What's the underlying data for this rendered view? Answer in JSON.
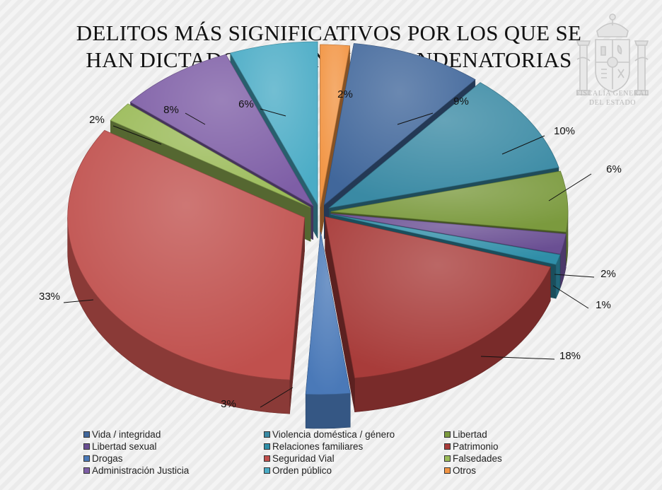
{
  "header": {
    "title_line1": "DELITOS MÁS SIGNIFICATIVOS POR LOS QUE SE",
    "title_line2": "HAN DICTADO SENTENCIAS CONDENATORIAS"
  },
  "emblem": {
    "icon": "coat-of-arms-icon",
    "line1": "FISCALÍA GENERAL",
    "line2": "DEL ESTADO"
  },
  "chart_data": {
    "type": "pie",
    "title": "DELITOS MÁS SIGNIFICATIVOS POR LOS QUE SE HAN DICTADO SENTENCIAS CONDENATORIAS",
    "style": "3d-exploded",
    "legend_position": "bottom",
    "slices": [
      {
        "name": "Otros",
        "value": 2,
        "label": "2%",
        "color": "#f29544"
      },
      {
        "name": "Vida / integridad",
        "value": 9,
        "label": "9%",
        "color": "#41679b"
      },
      {
        "name": "Violencia doméstica / género",
        "value": 10,
        "label": "10%",
        "color": "#3a8aa4"
      },
      {
        "name": "Libertad",
        "value": 6,
        "label": "6%",
        "color": "#7b9a3e"
      },
      {
        "name": "Libertad sexual",
        "value": 2,
        "label": "2%",
        "color": "#6a4f93"
      },
      {
        "name": "Relaciones familiares",
        "value": 1,
        "label": "1%",
        "color": "#2f8ea8"
      },
      {
        "name": "Patrimonio",
        "value": 18,
        "label": "18%",
        "color": "#a83c3a"
      },
      {
        "name": "Drogas",
        "value": 3,
        "label": "3%",
        "color": "#4a79b8"
      },
      {
        "name": "Seguridad Vial",
        "value": 33,
        "label": "33%",
        "color": "#c0504d"
      },
      {
        "name": "Falsedades",
        "value": 2,
        "label": "2%",
        "color": "#9bbb59"
      },
      {
        "name": "Administración Justicia",
        "value": 8,
        "label": "8%",
        "color": "#7e5ea6"
      },
      {
        "name": "Orden público",
        "value": 6,
        "label": "6%",
        "color": "#4bacc6"
      }
    ],
    "legend": [
      {
        "label": "Vida / integridad",
        "color": "#41679b"
      },
      {
        "label": "Violencia doméstica / género",
        "color": "#3a8aa4"
      },
      {
        "label": "Libertad",
        "color": "#7b9a3e"
      },
      {
        "label": "Libertad sexual",
        "color": "#6a4f93"
      },
      {
        "label": "Relaciones familiares",
        "color": "#2f8ea8"
      },
      {
        "label": "Patrimonio",
        "color": "#a83c3a"
      },
      {
        "label": "Drogas",
        "color": "#4a79b8"
      },
      {
        "label": "Seguridad Vial",
        "color": "#c0504d"
      },
      {
        "label": "Falsedades",
        "color": "#9bbb59"
      },
      {
        "label": "Administración Justicia",
        "color": "#7e5ea6"
      },
      {
        "label": "Orden público",
        "color": "#4bacc6"
      },
      {
        "label": "Otros",
        "color": "#f29544"
      }
    ]
  }
}
